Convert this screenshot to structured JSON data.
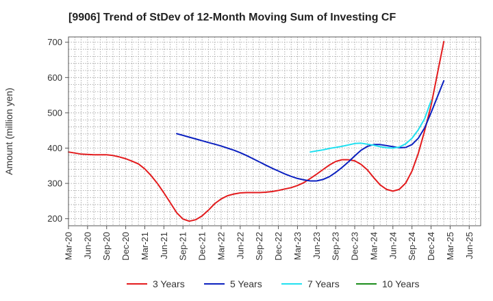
{
  "chart_data": {
    "type": "line",
    "title": "[9906]  Trend of StDev of 12-Month Moving Sum of Investing CF",
    "xlabel": "",
    "ylabel": "Amount (million yen)",
    "ylim": [
      180,
      715
    ],
    "yticks": [
      200,
      300,
      400,
      500,
      600,
      700
    ],
    "grid": true,
    "legend_position": "bottom",
    "categories": [
      "Mar-20",
      "Jun-20",
      "Sep-20",
      "Dec-20",
      "Mar-21",
      "Jun-21",
      "Sep-21",
      "Dec-21",
      "Mar-22",
      "Jun-22",
      "Sep-22",
      "Dec-22",
      "Mar-23",
      "Jun-23",
      "Sep-23",
      "Dec-23",
      "Mar-24",
      "Jun-24",
      "Sep-24",
      "Dec-24",
      "Mar-25",
      "Jun-25"
    ],
    "series": [
      {
        "name": "3 Years",
        "color": "#e31a1c",
        "points": [
          [
            0,
            389
          ],
          [
            0.33,
            386
          ],
          [
            0.67,
            383
          ],
          [
            1,
            382
          ],
          [
            1.33,
            381
          ],
          [
            1.67,
            381
          ],
          [
            2,
            381
          ],
          [
            2.33,
            379
          ],
          [
            2.67,
            375
          ],
          [
            3,
            370
          ],
          [
            3.33,
            363
          ],
          [
            3.67,
            355
          ],
          [
            4,
            341
          ],
          [
            4.33,
            322
          ],
          [
            4.67,
            299
          ],
          [
            5,
            273
          ],
          [
            5.33,
            246
          ],
          [
            5.67,
            217
          ],
          [
            6,
            199
          ],
          [
            6.33,
            193
          ],
          [
            6.67,
            197
          ],
          [
            7,
            208
          ],
          [
            7.33,
            224
          ],
          [
            7.67,
            243
          ],
          [
            8,
            256
          ],
          [
            8.33,
            265
          ],
          [
            8.67,
            270
          ],
          [
            9,
            273
          ],
          [
            9.33,
            274
          ],
          [
            9.67,
            274
          ],
          [
            10,
            274
          ],
          [
            10.33,
            275
          ],
          [
            10.67,
            277
          ],
          [
            11,
            280
          ],
          [
            11.33,
            284
          ],
          [
            11.67,
            288
          ],
          [
            12,
            294
          ],
          [
            12.33,
            302
          ],
          [
            12.67,
            314
          ],
          [
            13,
            326
          ],
          [
            13.33,
            339
          ],
          [
            13.67,
            352
          ],
          [
            14,
            362
          ],
          [
            14.33,
            367
          ],
          [
            14.67,
            367
          ],
          [
            15,
            364
          ],
          [
            15.33,
            354
          ],
          [
            15.67,
            338
          ],
          [
            16,
            316
          ],
          [
            16.33,
            296
          ],
          [
            16.67,
            283
          ],
          [
            17,
            278
          ],
          [
            17.33,
            283
          ],
          [
            17.67,
            301
          ],
          [
            18,
            335
          ],
          [
            18.33,
            385
          ],
          [
            18.67,
            450
          ],
          [
            19,
            520
          ],
          [
            19.33,
            610
          ],
          [
            19.67,
            702
          ]
        ]
      },
      {
        "name": "5 Years",
        "color": "#0a1fbf",
        "points": [
          [
            5.67,
            441
          ],
          [
            6,
            436
          ],
          [
            6.33,
            431
          ],
          [
            6.67,
            426
          ],
          [
            7,
            421
          ],
          [
            7.33,
            416
          ],
          [
            7.67,
            411
          ],
          [
            8,
            406
          ],
          [
            8.33,
            400
          ],
          [
            8.67,
            394
          ],
          [
            9,
            387
          ],
          [
            9.33,
            379
          ],
          [
            9.67,
            370
          ],
          [
            10,
            361
          ],
          [
            10.33,
            352
          ],
          [
            10.67,
            343
          ],
          [
            11,
            335
          ],
          [
            11.33,
            327
          ],
          [
            11.67,
            320
          ],
          [
            12,
            314
          ],
          [
            12.33,
            310
          ],
          [
            12.67,
            307
          ],
          [
            13,
            307
          ],
          [
            13.33,
            311
          ],
          [
            13.67,
            319
          ],
          [
            14,
            331
          ],
          [
            14.33,
            345
          ],
          [
            14.67,
            361
          ],
          [
            15,
            378
          ],
          [
            15.33,
            394
          ],
          [
            15.67,
            405
          ],
          [
            16,
            410
          ],
          [
            16.33,
            410
          ],
          [
            16.67,
            407
          ],
          [
            17,
            404
          ],
          [
            17.33,
            401
          ],
          [
            17.67,
            402
          ],
          [
            18,
            410
          ],
          [
            18.33,
            428
          ],
          [
            18.67,
            458
          ],
          [
            19,
            500
          ],
          [
            19.33,
            545
          ],
          [
            19.67,
            591
          ]
        ]
      },
      {
        "name": "7 Years",
        "color": "#1fe0f0",
        "points": [
          [
            12.67,
            389
          ],
          [
            13,
            392
          ],
          [
            13.33,
            395
          ],
          [
            13.67,
            399
          ],
          [
            14,
            402
          ],
          [
            14.33,
            405
          ],
          [
            14.67,
            409
          ],
          [
            15,
            413
          ],
          [
            15.33,
            414
          ],
          [
            15.67,
            411
          ],
          [
            16,
            408
          ],
          [
            16.33,
            404
          ],
          [
            16.67,
            401
          ],
          [
            17,
            400
          ],
          [
            17.33,
            403
          ],
          [
            17.67,
            412
          ],
          [
            18,
            428
          ],
          [
            18.33,
            452
          ],
          [
            18.67,
            484
          ],
          [
            19,
            534
          ]
        ]
      },
      {
        "name": "10 Years",
        "color": "#1a8c1a",
        "points": []
      }
    ]
  }
}
